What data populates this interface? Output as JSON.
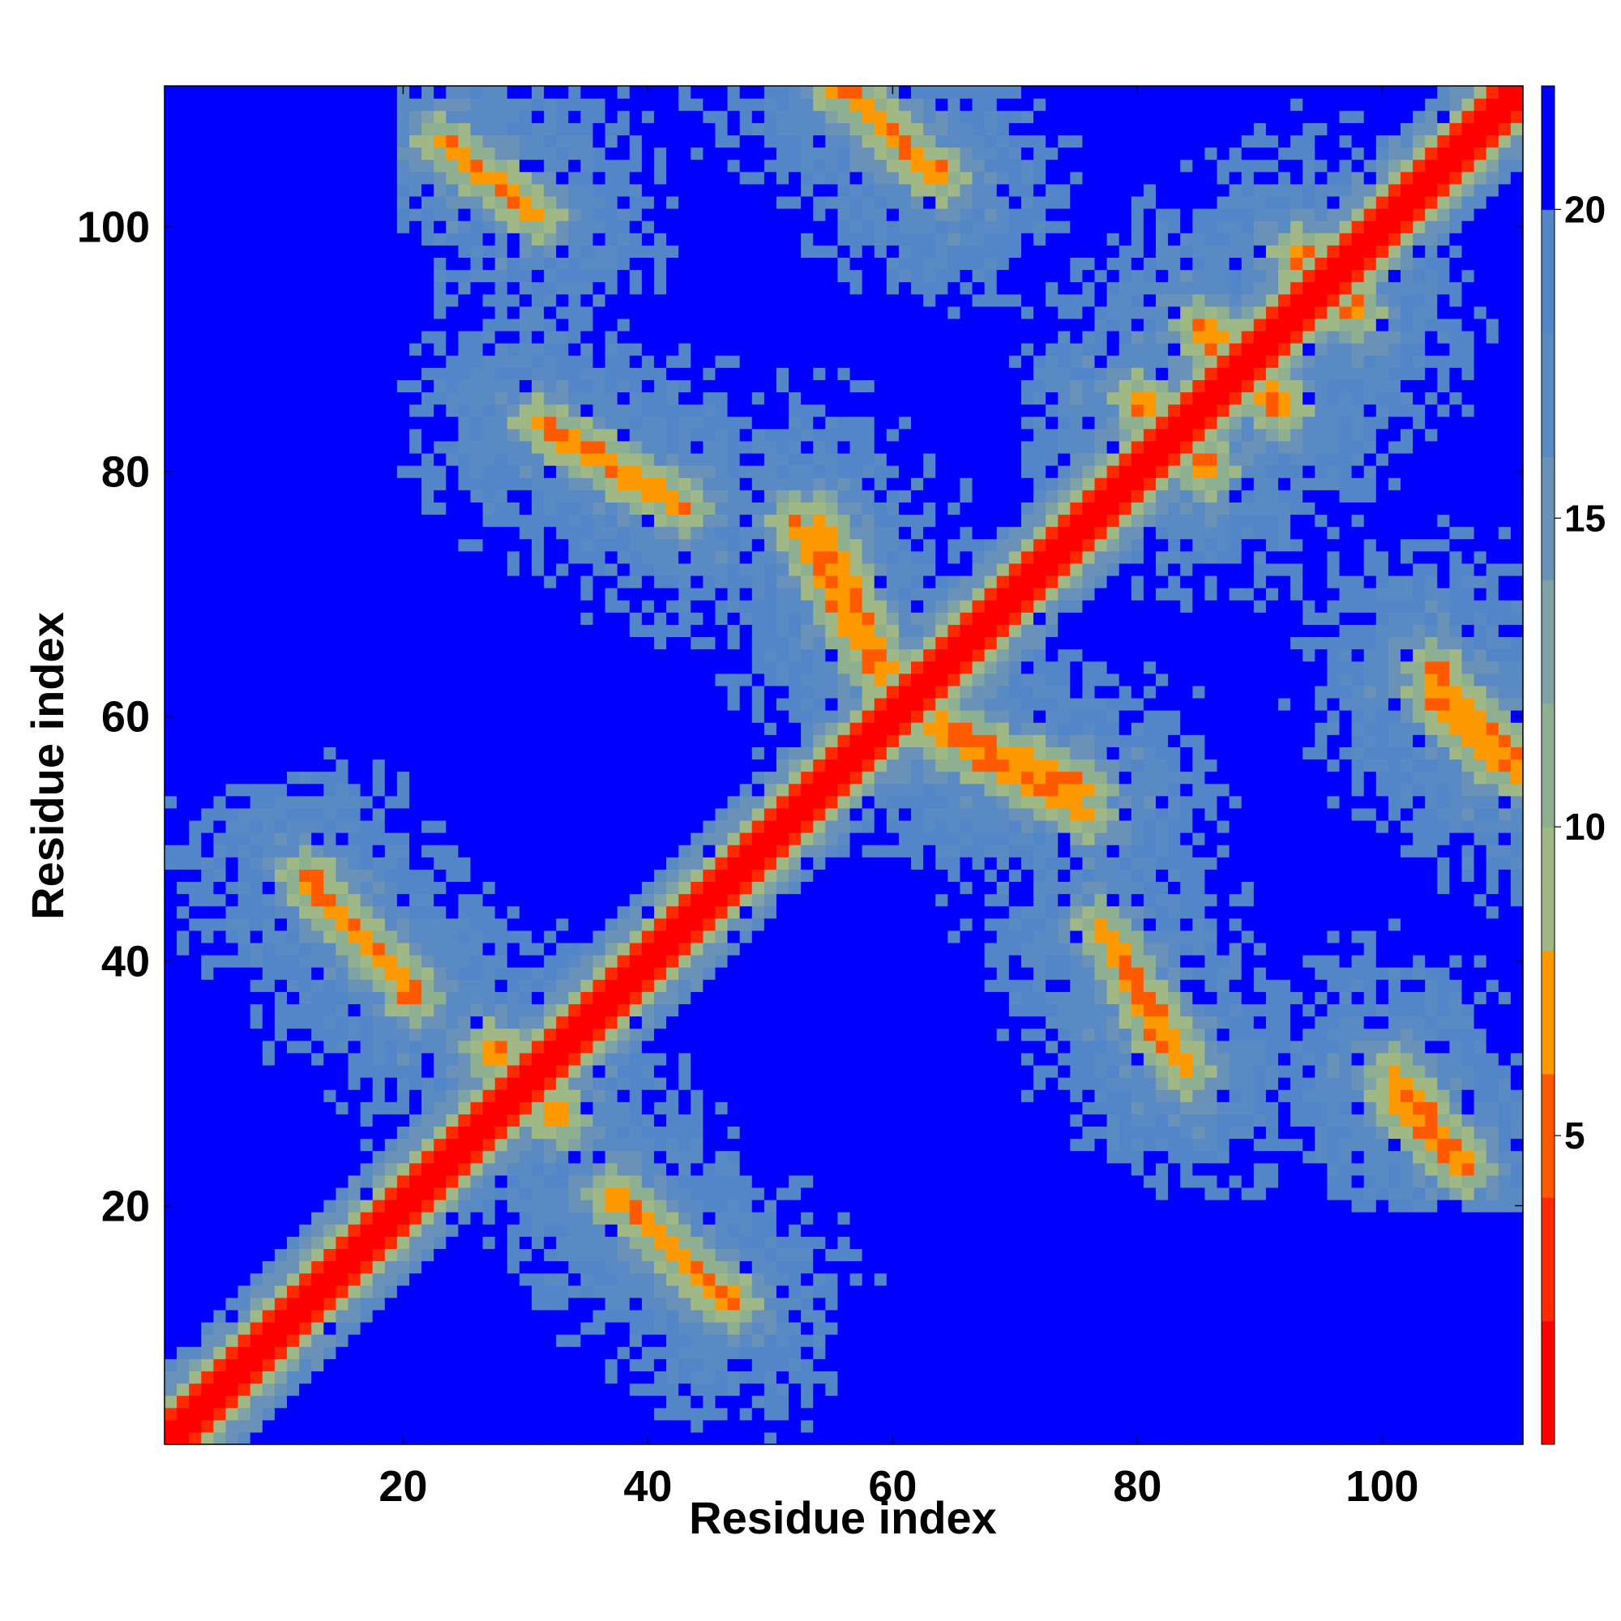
{
  "chart_data": {
    "type": "heatmap",
    "title": "",
    "xlabel": "Residue index",
    "ylabel": "Residue index",
    "n_residues": 111,
    "xlim": [
      1,
      111
    ],
    "ylim": [
      1,
      111
    ],
    "x_ticks": [
      20,
      40,
      60,
      80,
      100
    ],
    "y_ticks": [
      20,
      40,
      60,
      80,
      100
    ],
    "colorbar": {
      "ticks": [
        5,
        10,
        15,
        20
      ],
      "range": [
        0,
        22
      ],
      "bands": [
        {
          "from": 0,
          "to": 2,
          "color": "#ff0000"
        },
        {
          "from": 2,
          "to": 4,
          "color": "#ff2a00"
        },
        {
          "from": 4,
          "to": 6,
          "color": "#ff5a00"
        },
        {
          "from": 6,
          "to": 8,
          "color": "#ff9900"
        },
        {
          "from": 8,
          "to": 10,
          "color": "#9fb886"
        },
        {
          "from": 10,
          "to": 12,
          "color": "#8fb090"
        },
        {
          "from": 12,
          "to": 14,
          "color": "#7ea2a6"
        },
        {
          "from": 14,
          "to": 16,
          "color": "#6a92b8"
        },
        {
          "from": 16,
          "to": 18,
          "color": "#5a8ac4"
        },
        {
          "from": 18,
          "to": 20,
          "color": "#5286c8"
        },
        {
          "from": 20,
          "to": 22,
          "color": "#0000ff"
        }
      ]
    },
    "diagonal_band": {
      "center_value": 0,
      "width_residues": 2
    },
    "contact_segments": [
      {
        "from": [
          12,
          47
        ],
        "to": [
          21,
          37
        ]
      },
      {
        "from": [
          37,
          21
        ],
        "to": [
          47,
          12
        ]
      },
      {
        "from": [
          23,
          107
        ],
        "to": [
          31,
          101
        ]
      },
      {
        "from": [
          101,
          31
        ],
        "to": [
          107,
          23
        ]
      },
      {
        "from": [
          31,
          84
        ],
        "to": [
          43,
          77
        ]
      },
      {
        "from": [
          77,
          43
        ],
        "to": [
          84,
          31
        ]
      },
      {
        "from": [
          52,
          76
        ],
        "to": [
          59,
          63
        ]
      },
      {
        "from": [
          63,
          59
        ],
        "to": [
          76,
          52
        ]
      },
      {
        "from": [
          55,
          112
        ],
        "to": [
          64,
          104
        ]
      },
      {
        "from": [
          104,
          64
        ],
        "to": [
          112,
          55
        ]
      },
      {
        "from": [
          62,
          60
        ],
        "to": [
          76,
          54
        ]
      },
      {
        "from": [
          54,
          76
        ],
        "to": [
          60,
          62
        ]
      },
      {
        "from": [
          77,
          43
        ],
        "to": [
          83,
          32
        ]
      },
      {
        "from": [
          101,
          29
        ],
        "to": [
          107,
          23
        ]
      },
      {
        "from": [
          104,
          62
        ],
        "to": [
          110,
          56
        ]
      },
      {
        "from": [
          27,
          33
        ],
        "to": [
          33,
          27
        ]
      },
      {
        "from": [
          80,
          86
        ],
        "to": [
          86,
          80
        ]
      },
      {
        "from": [
          85,
          92
        ],
        "to": [
          92,
          85
        ]
      },
      {
        "from": [
          93,
          98
        ],
        "to": [
          98,
          93
        ]
      }
    ]
  }
}
